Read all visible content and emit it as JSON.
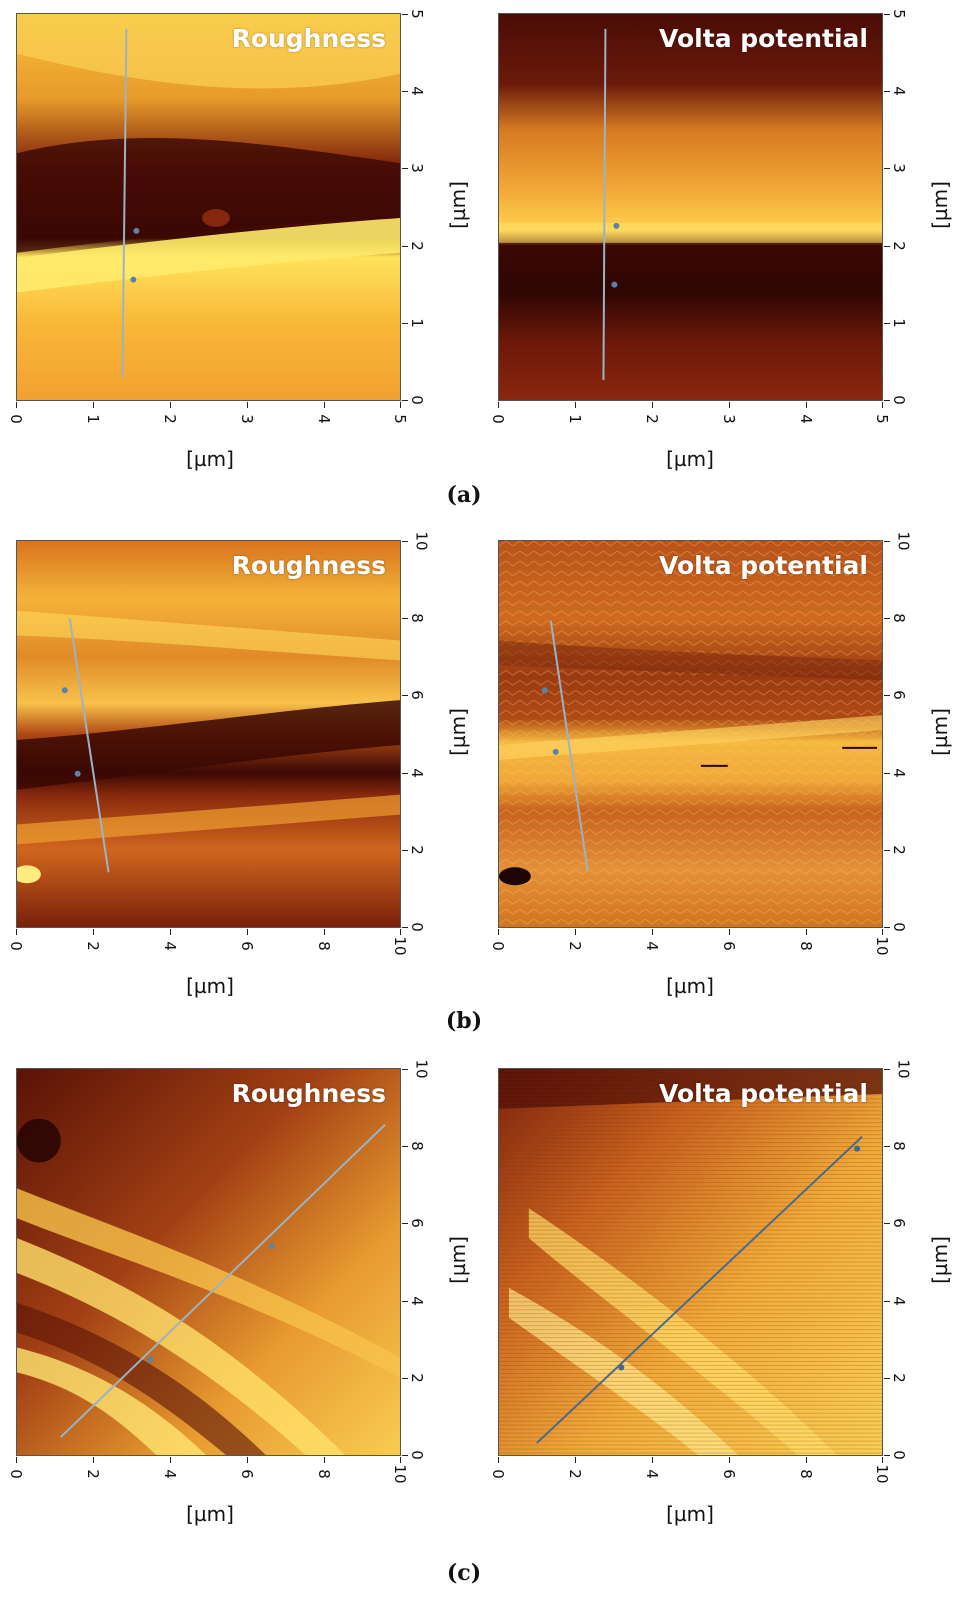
{
  "figure": {
    "rows": [
      {
        "caption": "(a)",
        "panels": [
          {
            "title": "Roughness",
            "x_label": "[µm]",
            "y_label": "[µm]",
            "x_ticks": [
              "0",
              "1",
              "2",
              "3",
              "4",
              "5"
            ],
            "y_ticks": [
              "0",
              "1",
              "2",
              "3",
              "4",
              "5"
            ],
            "colormap": "afm-hot"
          },
          {
            "title": "Volta potential",
            "x_label": "[µm]",
            "y_label": "[µm]",
            "x_ticks": [
              "0",
              "1",
              "2",
              "3",
              "4",
              "5"
            ],
            "y_ticks": [
              "0",
              "1",
              "2",
              "3",
              "4",
              "5"
            ],
            "colormap": "afm-hot"
          }
        ]
      },
      {
        "caption": "(b)",
        "panels": [
          {
            "title": "Roughness",
            "x_label": "[µm]",
            "y_label": "[µm]",
            "x_ticks": [
              "0",
              "2",
              "4",
              "6",
              "8",
              "10"
            ],
            "y_ticks": [
              "0",
              "2",
              "4",
              "6",
              "8",
              "10"
            ],
            "colormap": "afm-hot"
          },
          {
            "title": "Volta potential",
            "x_label": "[µm]",
            "y_label": "[µm]",
            "x_ticks": [
              "0",
              "2",
              "4",
              "6",
              "8",
              "10"
            ],
            "y_ticks": [
              "0",
              "2",
              "4",
              "6",
              "8",
              "10"
            ],
            "colormap": "afm-hot"
          }
        ]
      },
      {
        "caption": "(c)",
        "panels": [
          {
            "title": "Roughness",
            "x_label": "[µm]",
            "y_label": "[µm]",
            "x_ticks": [
              "0",
              "2",
              "4",
              "6",
              "8",
              "10"
            ],
            "y_ticks": [
              "0",
              "2",
              "4",
              "6",
              "8",
              "10"
            ],
            "colormap": "afm-hot"
          },
          {
            "title": "Volta potential",
            "x_label": "[µm]",
            "y_label": "[µm]",
            "x_ticks": [
              "0",
              "2",
              "4",
              "6",
              "8",
              "10"
            ],
            "y_ticks": [
              "0",
              "2",
              "4",
              "6",
              "8",
              "10"
            ],
            "colormap": "afm-hot"
          }
        ]
      }
    ]
  }
}
